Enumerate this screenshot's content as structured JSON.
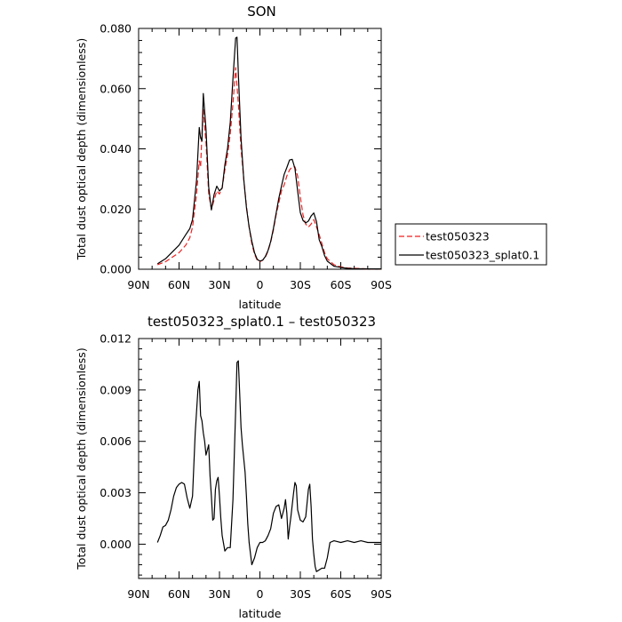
{
  "chart_data": [
    {
      "type": "line",
      "title": "SON",
      "xlabel": "latitude",
      "ylabel": "Total dust optical depth (dimensionless)",
      "xlim": [
        90,
        -90
      ],
      "ylim": [
        0,
        0.08
      ],
      "xticks": [
        90,
        60,
        30,
        0,
        -30,
        -60,
        -90
      ],
      "xtick_labels": [
        "90N",
        "60N",
        "30N",
        "0",
        "30S",
        "60S",
        "90S"
      ],
      "yticks": [
        0,
        0.02,
        0.04,
        0.06,
        0.08
      ],
      "ytick_labels": [
        "0.000",
        "0.020",
        "0.040",
        "0.060",
        "0.080"
      ],
      "grid": false,
      "legend_position": "right",
      "series": [
        {
          "name": "test050323",
          "color": "#ee2222",
          "dash": "dashed",
          "x": [
            76,
            70,
            60,
            55,
            52,
            50,
            47,
            45,
            44,
            43,
            42,
            40,
            38,
            36,
            34,
            32,
            30,
            28,
            26,
            24,
            22,
            20,
            18,
            16,
            14,
            12,
            10,
            8,
            6,
            4,
            2,
            0,
            -2,
            -4,
            -6,
            -8,
            -10,
            -12,
            -14,
            -16,
            -18,
            -20,
            -22,
            -24,
            -26,
            -28,
            -30,
            -32,
            -34,
            -36,
            -38,
            -40,
            -42,
            -44,
            -46,
            -48,
            -50,
            -55,
            -60,
            -65,
            -70,
            -80,
            -90
          ],
          "y": [
            0.0015,
            0.0025,
            0.0055,
            0.008,
            0.0105,
            0.014,
            0.025,
            0.036,
            0.034,
            0.045,
            0.053,
            0.042,
            0.025,
            0.02,
            0.023,
            0.026,
            0.025,
            0.027,
            0.033,
            0.038,
            0.045,
            0.055,
            0.067,
            0.055,
            0.04,
            0.03,
            0.021,
            0.014,
            0.0085,
            0.005,
            0.003,
            0.0025,
            0.003,
            0.004,
            0.006,
            0.009,
            0.013,
            0.018,
            0.022,
            0.026,
            0.028,
            0.031,
            0.033,
            0.034,
            0.034,
            0.031,
            0.024,
            0.018,
            0.015,
            0.014,
            0.015,
            0.0165,
            0.014,
            0.0115,
            0.0085,
            0.0055,
            0.0035,
            0.0015,
            0.0008,
            0.0004,
            0.0003,
            0.0001,
            0.0001
          ]
        },
        {
          "name": "test050323_splat0.1",
          "color": "#000000",
          "dash": "solid",
          "x": [
            76,
            70,
            60,
            55,
            52,
            50,
            47,
            45,
            44,
            43,
            42,
            40,
            38,
            36,
            34,
            32,
            30,
            28,
            26,
            24,
            22,
            20,
            18,
            17,
            16,
            14,
            12,
            10,
            8,
            6,
            4,
            2,
            0,
            -2,
            -4,
            -6,
            -8,
            -10,
            -12,
            -14,
            -16,
            -18,
            -20,
            -22,
            -24,
            -26,
            -28,
            -30,
            -32,
            -34,
            -36,
            -38,
            -40,
            -42,
            -44,
            -46,
            -48,
            -50,
            -55,
            -60,
            -65,
            -70,
            -80,
            -90
          ],
          "y": [
            0.0018,
            0.0035,
            0.008,
            0.0115,
            0.0135,
            0.0165,
            0.0297,
            0.0471,
            0.0436,
            0.0426,
            0.0584,
            0.0465,
            0.0273,
            0.0197,
            0.0248,
            0.0276,
            0.026,
            0.027,
            0.0347,
            0.0402,
            0.0488,
            0.0633,
            0.0768,
            0.0771,
            0.065,
            0.0435,
            0.03,
            0.0205,
            0.014,
            0.0093,
            0.0055,
            0.0033,
            0.0027,
            0.003,
            0.0042,
            0.0062,
            0.0092,
            0.0135,
            0.0185,
            0.0235,
            0.0276,
            0.0315,
            0.0338,
            0.0363,
            0.0365,
            0.0335,
            0.026,
            0.0188,
            0.0162,
            0.0154,
            0.016,
            0.0177,
            0.0187,
            0.0158,
            0.0098,
            0.0075,
            0.0045,
            0.0027,
            0.001,
            0.0006,
            0.0003,
            0.0002,
            0.0001,
            0.0001
          ]
        }
      ]
    },
    {
      "type": "line",
      "title": "test050323_splat0.1 – test050323",
      "xlabel": "latitude",
      "ylabel": "Total dust optical depth (dimensionless)",
      "xlim": [
        90,
        -90
      ],
      "ylim": [
        -0.002,
        0.012
      ],
      "xticks": [
        90,
        60,
        30,
        0,
        -30,
        -60,
        -90
      ],
      "xtick_labels": [
        "90N",
        "60N",
        "30N",
        "0",
        "30S",
        "60S",
        "90S"
      ],
      "yticks": [
        0,
        0.003,
        0.006,
        0.009,
        0.012
      ],
      "ytick_labels": [
        "0.000",
        "0.003",
        "0.006",
        "0.009",
        "0.012"
      ],
      "grid": false,
      "series": [
        {
          "color": "#000000",
          "dash": "solid",
          "x": [
            76,
            74,
            72,
            70,
            68,
            66,
            64,
            62,
            60,
            58,
            56,
            54,
            52,
            50,
            48,
            46,
            45,
            44,
            43,
            42,
            41,
            40,
            38,
            37,
            36,
            35,
            34,
            33,
            32,
            31,
            30,
            29,
            28,
            26,
            24,
            22,
            20,
            19,
            18,
            17,
            16,
            15,
            14,
            13,
            12,
            11,
            10,
            9,
            8,
            6,
            4,
            2,
            0,
            -2,
            -4,
            -6,
            -8,
            -10,
            -12,
            -14,
            -16,
            -18,
            -19,
            -20,
            -21,
            -22,
            -23,
            -24,
            -25,
            -26,
            -27,
            -28,
            -30,
            -32,
            -34,
            -35,
            -36,
            -37,
            -38,
            -39,
            -40,
            -41,
            -42,
            -44,
            -46,
            -48,
            -50,
            -52,
            -55,
            -60,
            -65,
            -70,
            -75,
            -80,
            -85,
            -90
          ],
          "y": [
            0.0001,
            0.0005,
            0.001,
            0.0011,
            0.0014,
            0.002,
            0.0028,
            0.0033,
            0.0035,
            0.0036,
            0.0035,
            0.0027,
            0.0021,
            0.0028,
            0.0065,
            0.009,
            0.0095,
            0.0075,
            0.0072,
            0.0065,
            0.006,
            0.0052,
            0.0058,
            0.004,
            0.0028,
            0.0014,
            0.0015,
            0.0032,
            0.0037,
            0.0039,
            0.0028,
            0.0015,
            0.0005,
            -0.0004,
            -0.0002,
            -0.0002,
            0.0026,
            0.0052,
            0.0078,
            0.0106,
            0.0107,
            0.0088,
            0.0068,
            0.0058,
            0.005,
            0.0042,
            0.0028,
            0.0012,
            0.0001,
            -0.0012,
            -0.0008,
            -0.0002,
            0.0001,
            0.0001,
            0.0002,
            0.0005,
            0.0009,
            0.0018,
            0.0022,
            0.0023,
            0.0015,
            0.0021,
            0.0026,
            0.0018,
            0.0003,
            0.001,
            0.0016,
            0.0023,
            0.003,
            0.0036,
            0.0034,
            0.002,
            0.0014,
            0.0013,
            0.0016,
            0.0024,
            0.0032,
            0.0035,
            0.0022,
            0.0003,
            -0.0006,
            -0.0013,
            -0.0016,
            -0.0015,
            -0.0014,
            -0.0014,
            -0.0008,
            0.0001,
            0.0002,
            0.0001,
            0.0002,
            0.0001,
            0.0002,
            0.0001,
            0.0001,
            0.0001
          ]
        }
      ]
    }
  ]
}
